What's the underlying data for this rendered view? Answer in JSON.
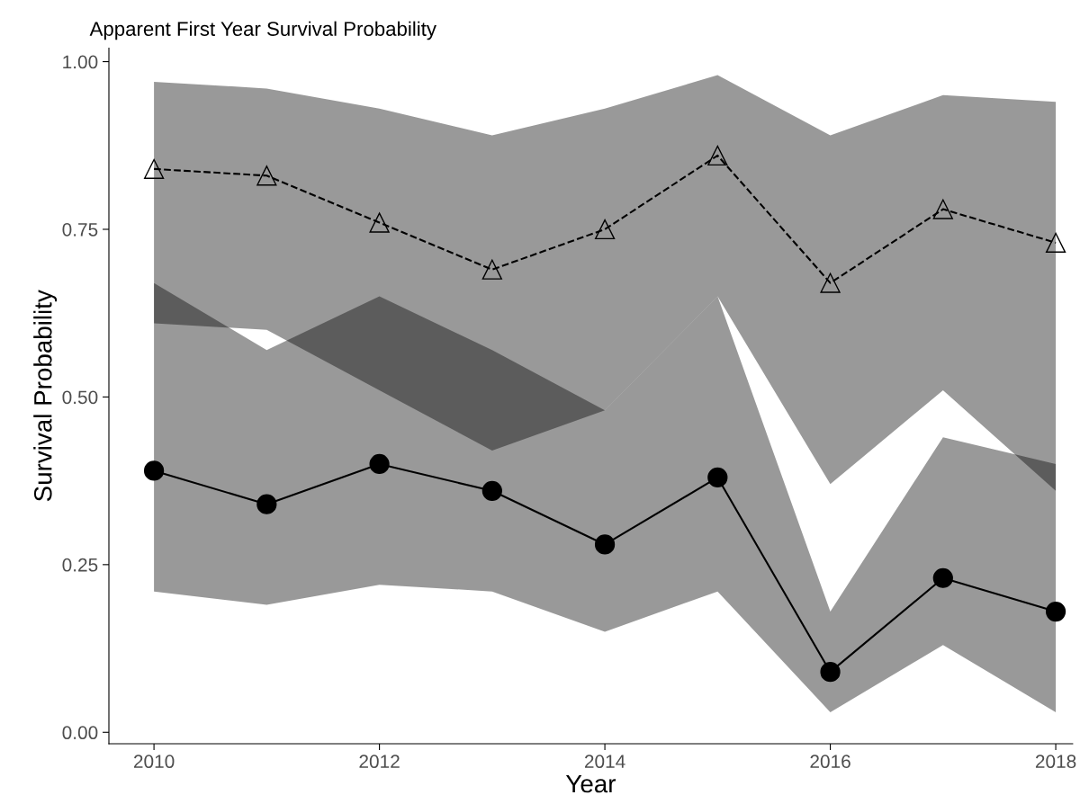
{
  "chart_data": {
    "type": "line",
    "title": "Apparent First Year Survival Probability",
    "xlabel": "Year",
    "ylabel": "Survival Probability",
    "x": [
      2010,
      2011,
      2012,
      2013,
      2014,
      2015,
      2016,
      2017,
      2018
    ],
    "series": [
      {
        "color": "#000000",
        "marker": "circle",
        "line_style": "solid",
        "values": [
          0.39,
          0.34,
          0.4,
          0.36,
          0.28,
          0.38,
          0.09,
          0.23,
          0.18
        ],
        "lower": [
          0.21,
          0.19,
          0.22,
          0.21,
          0.15,
          0.21,
          0.03,
          0.13,
          0.03
        ],
        "upper": [
          0.67,
          0.57,
          0.65,
          0.57,
          0.48,
          0.65,
          0.18,
          0.44,
          0.4
        ]
      },
      {
        "color": "#000000",
        "marker": "triangle",
        "line_style": "dashed",
        "values": [
          0.84,
          0.83,
          0.76,
          0.69,
          0.75,
          0.86,
          0.67,
          0.78,
          0.73
        ],
        "lower": [
          0.61,
          0.6,
          0.51,
          0.42,
          0.48,
          0.65,
          0.37,
          0.51,
          0.36
        ],
        "upper": [
          0.97,
          0.96,
          0.93,
          0.89,
          0.93,
          0.98,
          0.89,
          0.95,
          0.94
        ]
      }
    ],
    "xlim": [
      2009.6,
      2018.15
    ],
    "xticks": [
      2010,
      2012,
      2014,
      2016,
      2018
    ],
    "ylim": [
      -0.017,
      1.02
    ],
    "yticks": [
      {
        "value": 0,
        "label": "0.00"
      },
      {
        "value": 0.25,
        "label": "0.25"
      },
      {
        "value": 0.5,
        "label": "0.50"
      },
      {
        "value": 0.75,
        "label": "0.75"
      },
      {
        "value": 1,
        "label": "1.00"
      }
    ],
    "grid": false,
    "legend": false
  }
}
